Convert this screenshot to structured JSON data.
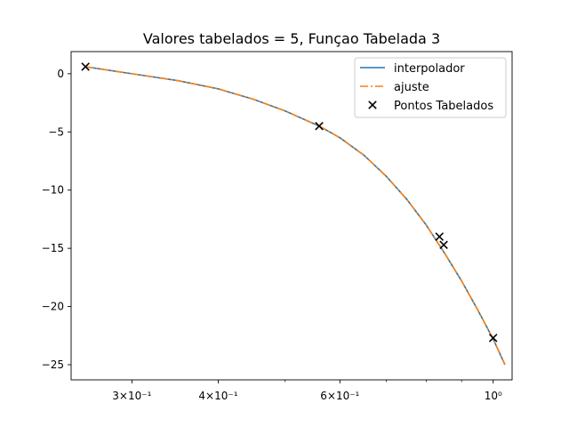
{
  "chart_data": {
    "type": "line",
    "title": "Valores tabelados = 5, Funçao Tabelada 3",
    "xlabel": "",
    "ylabel": "",
    "xscale": "log",
    "xlim": [
      0.245,
      1.065
    ],
    "ylim": [
      -26.3,
      1.9
    ],
    "grid": false,
    "legend": "top-right",
    "x_ticks": [
      {
        "value": 0.3,
        "label": "3×10⁻¹"
      },
      {
        "value": 0.4,
        "label": "4×10⁻¹"
      },
      {
        "value": 0.6,
        "label": "6×10⁻¹"
      },
      {
        "value": 1.0,
        "label": "10⁰"
      }
    ],
    "x_minor_ticks": [
      0.5,
      0.7,
      0.8,
      0.9
    ],
    "y_ticks": [
      {
        "value": 0,
        "label": "0"
      },
      {
        "value": -5,
        "label": "−5"
      },
      {
        "value": -10,
        "label": "−10"
      },
      {
        "value": -15,
        "label": "−15"
      },
      {
        "value": -20,
        "label": "−20"
      },
      {
        "value": -25,
        "label": "−25"
      }
    ],
    "series": [
      {
        "name": "interpolador",
        "style": "solid",
        "color": "#1f77b4",
        "x": [
          0.257,
          0.3,
          0.35,
          0.4,
          0.45,
          0.5,
          0.56,
          0.6,
          0.65,
          0.7,
          0.75,
          0.8,
          0.85,
          0.9,
          0.95,
          1.0,
          1.04
        ],
        "y": [
          0.6,
          0.0,
          -0.6,
          -1.3,
          -2.2,
          -3.2,
          -4.5,
          -5.5,
          -7.0,
          -8.8,
          -10.8,
          -13.0,
          -15.4,
          -17.8,
          -20.3,
          -22.8,
          -25.0
        ]
      },
      {
        "name": "ajuste",
        "style": "dashdot",
        "color": "#ff7f0e",
        "x": [
          0.257,
          0.3,
          0.35,
          0.4,
          0.45,
          0.5,
          0.56,
          0.6,
          0.65,
          0.7,
          0.75,
          0.8,
          0.85,
          0.9,
          0.95,
          1.0,
          1.04
        ],
        "y": [
          0.6,
          0.0,
          -0.6,
          -1.3,
          -2.2,
          -3.2,
          -4.5,
          -5.5,
          -7.0,
          -8.8,
          -10.8,
          -13.0,
          -15.4,
          -17.8,
          -20.3,
          -22.8,
          -25.0
        ]
      },
      {
        "name": "Pontos Tabelados",
        "style": "marker-x",
        "color": "#000000",
        "x": [
          0.257,
          0.56,
          0.836,
          0.848,
          1.0
        ],
        "y": [
          0.6,
          -4.5,
          -14.0,
          -14.7,
          -22.7
        ]
      }
    ]
  }
}
